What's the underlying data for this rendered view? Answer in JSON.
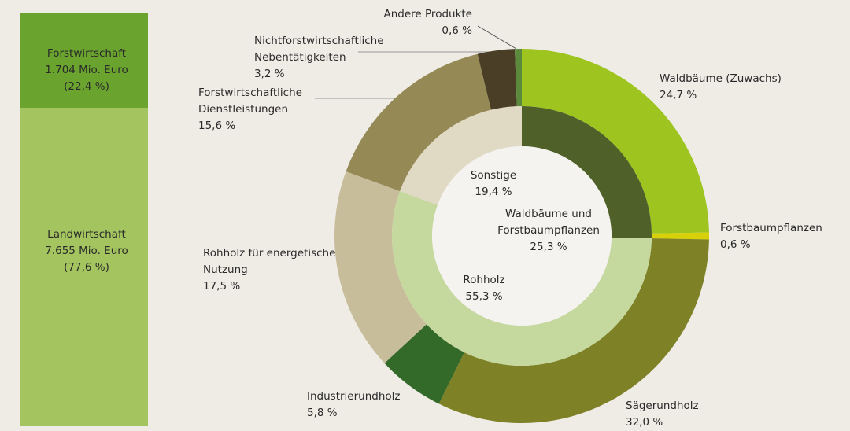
{
  "chart_data": [
    {
      "type": "stacked-bar",
      "series": [
        {
          "name": "Forstwirtschaft",
          "amount": "1.704 Mio. Euro",
          "values": [
            22.4
          ],
          "value_labels": [
            "(22,4 %)"
          ],
          "color": "#6aa32e"
        },
        {
          "name": "Landwirtschaft",
          "amount": "7.655 Mio. Euro",
          "values": [
            77.6
          ],
          "value_labels": [
            "(77,6 %)"
          ],
          "color": "#a3c45e"
        }
      ]
    },
    {
      "type": "donut",
      "rings": [
        {
          "categories": [
            "Waldbäume (Zuwachs)",
            "Forstbaumpflanzen",
            "Sägerundholz",
            "Industrierundholz",
            "Rohholz für energetische Nutzung",
            "Forstwirtschaftliche Dienstleistungen",
            "Nichtforstwirtschaftliche Nebentätigkeiten",
            "Andere Produkte"
          ],
          "values": [
            24.7,
            0.6,
            32.0,
            5.8,
            17.5,
            15.6,
            3.2,
            0.6
          ],
          "value_labels": [
            "24,7 %",
            "0,6 %",
            "32,0 %",
            "5,8 %",
            "17,5 %",
            "15,6 %",
            "3,2 %",
            "0,6 %"
          ],
          "colors": [
            "#9dc41f",
            "#d8d10a",
            "#7e8126",
            "#336a2a",
            "#c8bd9a",
            "#958a55",
            "#4a3f26",
            "#5c8a3c"
          ]
        },
        {
          "categories": [
            "Waldbäume und Forstbaumpflanzen",
            "Rohholz",
            "Sonstige"
          ],
          "values": [
            25.3,
            55.3,
            19.4
          ],
          "value_labels": [
            "25,3 %",
            "55,3 %",
            "19,4 %"
          ],
          "colors": [
            "#4f6128",
            "#c5d89e",
            "#e0d9c3"
          ]
        }
      ]
    }
  ]
}
